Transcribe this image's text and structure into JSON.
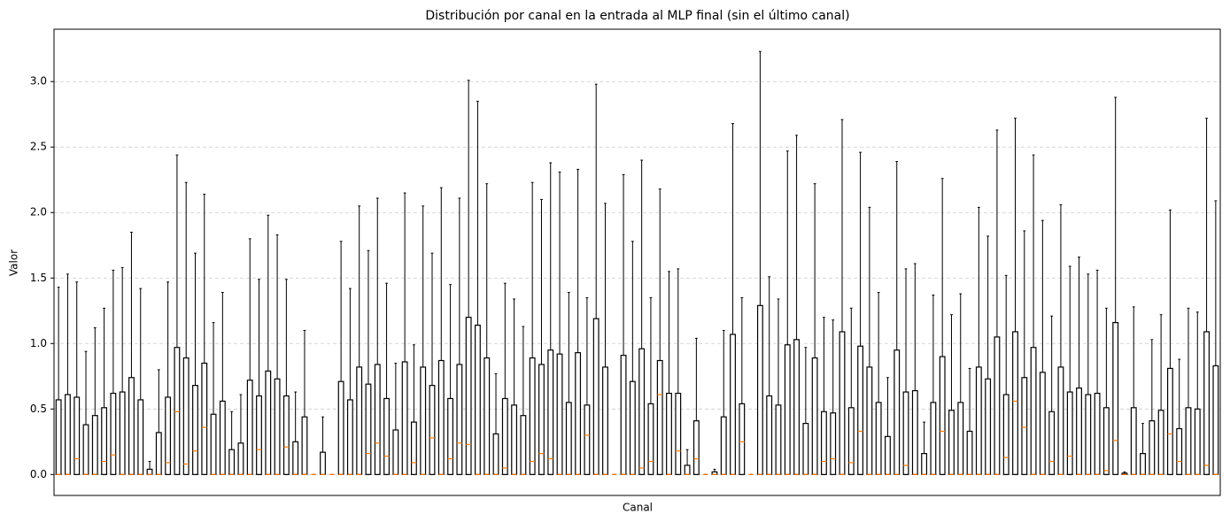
{
  "chart_data": {
    "type": "boxplot",
    "title": "Distribución por canal en la entrada al MLP final (sin el último canal)",
    "x_label": "Canal",
    "y_label": "Valor",
    "ylim": [
      -0.16,
      3.4
    ],
    "yticks": [
      {
        "value": 0,
        "label": "0.0"
      },
      {
        "value": 0.5,
        "label": "0.5"
      },
      {
        "value": 1,
        "label": "1.0"
      },
      {
        "value": 1.5,
        "label": "1.5"
      },
      {
        "value": 2,
        "label": "2.0"
      },
      {
        "value": 2.5,
        "label": "2.5"
      },
      {
        "value": 3,
        "label": "3.0"
      }
    ],
    "grid": true,
    "box_color": "#000000",
    "median_color": "#ff7f0e",
    "whislo": [
      0,
      0,
      0,
      0,
      0,
      0,
      0,
      0,
      0,
      0,
      0,
      0,
      0,
      0,
      0,
      0,
      0,
      0,
      0,
      0,
      0,
      0,
      0,
      0,
      0,
      0,
      0,
      0,
      0,
      0,
      0,
      0,
      0,
      0,
      0,
      0,
      0,
      0,
      0,
      0,
      0,
      0,
      0,
      0,
      0,
      0,
      0,
      0,
      0,
      0,
      0,
      0,
      0,
      0,
      0,
      0,
      0,
      0,
      0,
      0,
      0,
      0,
      0,
      0,
      0,
      0,
      0,
      0,
      0,
      0,
      0,
      0,
      0,
      0,
      0,
      0,
      0,
      0,
      0,
      0,
      0,
      0,
      0,
      0,
      0,
      0,
      0,
      0,
      0,
      0,
      0,
      0,
      0,
      0,
      0,
      0,
      0,
      0,
      0,
      0,
      0,
      0,
      0,
      0,
      0,
      0,
      0,
      0,
      0,
      0,
      0,
      0,
      0,
      0,
      0,
      0,
      0,
      0,
      0,
      0,
      0,
      0,
      0,
      0,
      0,
      0,
      0,
      0
    ],
    "q1": [
      0,
      0,
      0,
      0,
      0,
      0,
      0,
      0,
      0,
      0,
      0,
      0,
      0,
      0,
      0,
      0,
      0,
      0,
      0,
      0,
      0,
      0,
      0,
      0,
      0,
      0,
      0,
      0,
      0,
      0,
      0,
      0,
      0,
      0,
      0,
      0,
      0,
      0,
      0,
      0,
      0,
      0,
      0,
      0,
      0,
      0,
      0,
      0,
      0,
      0,
      0,
      0,
      0,
      0,
      0,
      0,
      0,
      0,
      0,
      0,
      0,
      0,
      0,
      0,
      0,
      0,
      0,
      0,
      0,
      0,
      0,
      0,
      0,
      0,
      0,
      0,
      0,
      0,
      0,
      0,
      0,
      0,
      0,
      0,
      0,
      0,
      0,
      0,
      0,
      0,
      0,
      0,
      0,
      0,
      0,
      0,
      0,
      0,
      0,
      0,
      0,
      0,
      0,
      0,
      0,
      0,
      0,
      0,
      0,
      0,
      0,
      0,
      0,
      0,
      0,
      0,
      0,
      0,
      0,
      0,
      0,
      0,
      0,
      0,
      0,
      0,
      0,
      0
    ],
    "median": [
      0,
      0,
      0.12,
      0,
      0,
      0.1,
      0.15,
      0,
      0,
      0,
      0,
      0,
      0.09,
      0.48,
      0.08,
      0.18,
      0.36,
      0,
      0,
      0,
      0,
      0,
      0.19,
      0,
      0,
      0.21,
      0,
      0,
      0,
      0,
      0,
      0,
      0,
      0,
      0.16,
      0.24,
      0.14,
      0,
      0,
      0.09,
      0,
      0.28,
      0,
      0.12,
      0.24,
      0.23,
      0,
      0,
      0,
      0.05,
      0,
      0,
      0.1,
      0.16,
      0.12,
      0,
      0,
      0,
      0.3,
      0,
      0,
      0,
      0,
      0,
      0.05,
      0.1,
      0.61,
      0,
      0.18,
      0,
      0.12,
      0,
      0,
      0,
      0,
      0.25,
      0,
      0,
      0,
      0,
      0,
      0,
      0,
      0,
      0.1,
      0.12,
      0,
      0.09,
      0.33,
      0,
      0,
      0,
      0,
      0.07,
      0,
      0,
      0,
      0.33,
      0,
      0,
      0,
      0,
      0,
      0,
      0.13,
      0.56,
      0.36,
      0,
      0,
      0.1,
      0,
      0.14,
      0,
      0,
      0,
      0.03,
      0.26,
      0,
      0,
      0,
      0,
      0,
      0.31,
      0.1,
      0,
      0,
      0.07,
      0
    ],
    "q3": [
      0.57,
      0.61,
      0.59,
      0.38,
      0.45,
      0.51,
      0.62,
      0.63,
      0.74,
      0.57,
      0.04,
      0.32,
      0.59,
      0.97,
      0.89,
      0.68,
      0.85,
      0.46,
      0.56,
      0.19,
      0.24,
      0.72,
      0.6,
      0.79,
      0.73,
      0.6,
      0.25,
      0.44,
      0,
      0.17,
      0,
      0.71,
      0.57,
      0.82,
      0.69,
      0.84,
      0.58,
      0.34,
      0.86,
      0.4,
      0.82,
      0.68,
      0.87,
      0.58,
      0.84,
      1.2,
      1.14,
      0.89,
      0.31,
      0.58,
      0.53,
      0.45,
      0.89,
      0.84,
      0.95,
      0.92,
      0.55,
      0.93,
      0.53,
      1.19,
      0.82,
      0,
      0.91,
      0.71,
      0.96,
      0.54,
      0.87,
      0.62,
      0.62,
      0.07,
      0.41,
      0,
      0.02,
      0.44,
      1.07,
      0.54,
      0,
      1.29,
      0.6,
      0.53,
      0.99,
      1.03,
      0.39,
      0.89,
      0.48,
      0.47,
      1.09,
      0.51,
      0.98,
      0.82,
      0.55,
      0.29,
      0.95,
      0.63,
      0.64,
      0.16,
      0.55,
      0.9,
      0.49,
      0.55,
      0.33,
      0.82,
      0.73,
      1.05,
      0.61,
      1.09,
      0.74,
      0.97,
      0.78,
      0.48,
      0.82,
      0.63,
      0.66,
      0.61,
      0.62,
      0.51,
      1.16,
      0.01,
      0.51,
      0.16,
      0.41,
      0.49,
      0.81,
      0.35,
      0.51,
      0.5,
      1.09,
      0.83
    ],
    "whishi": [
      1.43,
      1.53,
      1.47,
      0.94,
      1.12,
      1.27,
      1.56,
      1.58,
      1.85,
      1.42,
      0.1,
      0.8,
      1.47,
      2.44,
      2.23,
      1.69,
      2.14,
      1.16,
      1.39,
      0.48,
      0.61,
      1.8,
      1.49,
      1.98,
      1.83,
      1.49,
      0.63,
      1.1,
      0,
      0.44,
      0,
      1.78,
      1.42,
      2.05,
      1.71,
      2.11,
      1.46,
      0.85,
      2.15,
      0.99,
      2.05,
      1.69,
      2.19,
      1.45,
      2.11,
      3.01,
      2.85,
      2.22,
      0.77,
      1.46,
      1.34,
      1.13,
      2.23,
      2.1,
      2.38,
      2.31,
      1.39,
      2.33,
      1.35,
      2.98,
      2.07,
      0,
      2.29,
      1.78,
      2.4,
      1.35,
      2.18,
      1.55,
      1.57,
      0.19,
      1.04,
      0,
      0.04,
      1.1,
      2.68,
      1.35,
      0,
      3.23,
      1.51,
      1.34,
      2.47,
      2.59,
      0.97,
      2.22,
      1.2,
      1.18,
      2.71,
      1.27,
      2.46,
      2.04,
      1.39,
      0.74,
      2.39,
      1.57,
      1.61,
      0.4,
      1.37,
      2.26,
      1.22,
      1.38,
      0.81,
      2.04,
      1.82,
      2.63,
      1.52,
      2.72,
      1.86,
      2.44,
      1.94,
      1.21,
      2.06,
      1.59,
      1.66,
      1.53,
      1.56,
      1.27,
      2.88,
      0.02,
      1.28,
      0.39,
      1.03,
      1.22,
      2.02,
      0.88,
      1.27,
      1.24,
      2.72,
      2.09
    ]
  }
}
